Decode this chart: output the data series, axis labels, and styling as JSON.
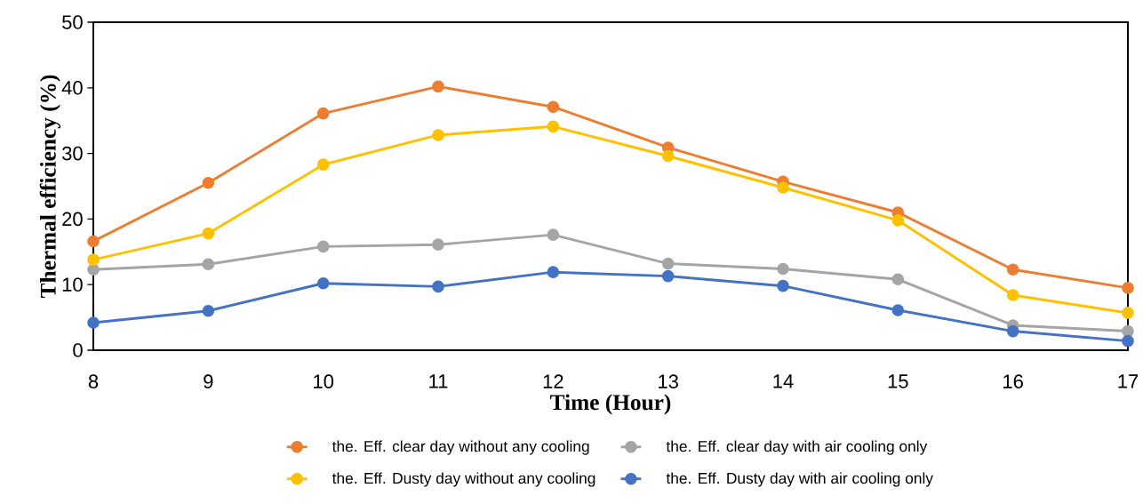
{
  "chart_data": {
    "type": "line",
    "xlabel": "Time (Hour)",
    "ylabel": "Thermal efficiency (%)",
    "x": [
      8,
      9,
      10,
      11,
      12,
      13,
      14,
      15,
      16,
      17
    ],
    "xlim": [
      8,
      17
    ],
    "xticks": [
      8,
      9,
      10,
      11,
      12,
      13,
      14,
      15,
      16,
      17
    ],
    "ylim": [
      0,
      50
    ],
    "yticks": [
      0,
      10,
      20,
      30,
      40,
      50
    ],
    "grid": false,
    "legend": "bottom",
    "marker": "circle",
    "line_style": "solid",
    "series": [
      {
        "name": "the. Eff. clear day without any cooling",
        "color": "#ed7d31",
        "values": [
          16.6,
          25.5,
          36.1,
          40.2,
          37.1,
          30.9,
          25.7,
          21.0,
          12.3,
          9.5
        ]
      },
      {
        "name": "the. Eff. clear day with air cooling only",
        "color": "#a5a5a5",
        "values": [
          12.3,
          13.1,
          15.8,
          16.1,
          17.6,
          13.2,
          12.4,
          10.8,
          3.8,
          2.9
        ]
      },
      {
        "name": "the. Eff. Dusty day without any cooling",
        "color": "#ffc000",
        "values": [
          13.8,
          17.8,
          28.3,
          32.8,
          34.1,
          29.6,
          24.8,
          19.8,
          8.4,
          5.7
        ]
      },
      {
        "name": "the. Eff. Dusty day with air cooling only",
        "color": "#4472c4",
        "values": [
          4.2,
          6.0,
          10.2,
          9.7,
          11.9,
          11.3,
          9.8,
          6.1,
          2.9,
          1.4
        ]
      }
    ]
  }
}
